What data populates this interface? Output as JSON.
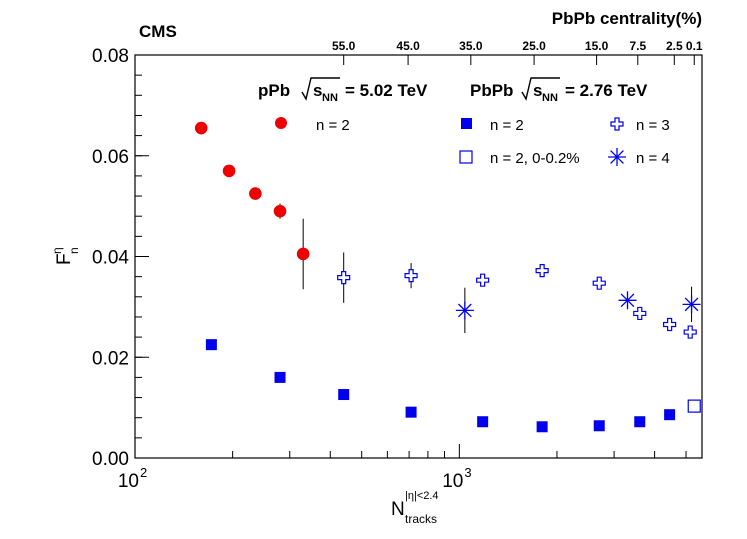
{
  "chart_data": {
    "type": "scatter",
    "title": "",
    "experiment_label": "CMS",
    "top_axis_title": "PbPb centrality(%)",
    "top_tick_labels": [
      {
        "label": "55.0",
        "x": 440
      },
      {
        "label": "45.0",
        "x": 695
      },
      {
        "label": "35.0",
        "x": 1085
      },
      {
        "label": "25.0",
        "x": 1700
      },
      {
        "label": "15.0",
        "x": 2650
      },
      {
        "label": "7.5",
        "x": 3550
      },
      {
        "label": "2.5",
        "x": 4600
      },
      {
        "label": "0.1",
        "x": 5300
      }
    ],
    "xlabel": {
      "main": "N",
      "sub": "tracks",
      "sup": "|η|<2.4"
    },
    "ylabel": {
      "main": "F",
      "sub": "n",
      "sup": "η"
    },
    "xscale": "log",
    "xlim": [
      100,
      5600
    ],
    "ylim": [
      0,
      0.08
    ],
    "x_major_ticks": [
      {
        "value": 100,
        "base": "10",
        "exp": "2"
      },
      {
        "value": 1000,
        "base": "10",
        "exp": "3"
      }
    ],
    "y_ticks": [
      {
        "value": 0.0,
        "label": "0.00"
      },
      {
        "value": 0.02,
        "label": "0.02"
      },
      {
        "value": 0.04,
        "label": "0.04"
      },
      {
        "value": 0.06,
        "label": "0.06"
      },
      {
        "value": 0.08,
        "label": "0.08"
      }
    ],
    "grid": false,
    "legend_headers": [
      {
        "text_main": "pPb",
        "text_sqrt": "s",
        "text_sub": "NN",
        "text_value": "= 5.02 TeV"
      },
      {
        "text_main": "PbPb",
        "text_sqrt": "s",
        "text_sub": "NN",
        "text_value": "= 2.76 TeV"
      }
    ],
    "series": [
      {
        "name": "n = 2",
        "system": "pPb",
        "marker": "filled-circle",
        "color": "#ee0000",
        "points": [
          {
            "x": 160,
            "y": 0.0655,
            "err": 0.0012
          },
          {
            "x": 195,
            "y": 0.057,
            "err": 0.0008
          },
          {
            "x": 235,
            "y": 0.0525,
            "err": 0.0008
          },
          {
            "x": 280,
            "y": 0.049,
            "err": 0.0015
          },
          {
            "x": 330,
            "y": 0.0405,
            "err": 0.007
          }
        ]
      },
      {
        "name": "n = 2",
        "system": "PbPb",
        "marker": "filled-square",
        "color": "#0000ee",
        "points": [
          {
            "x": 172,
            "y": 0.0225,
            "err": 0
          },
          {
            "x": 280,
            "y": 0.016,
            "err": 0
          },
          {
            "x": 440,
            "y": 0.0126,
            "err": 0
          },
          {
            "x": 710,
            "y": 0.0091,
            "err": 0
          },
          {
            "x": 1180,
            "y": 0.0072,
            "err": 0
          },
          {
            "x": 1800,
            "y": 0.0062,
            "err": 0
          },
          {
            "x": 2700,
            "y": 0.0064,
            "err": 0
          },
          {
            "x": 3600,
            "y": 0.0072,
            "err": 0
          },
          {
            "x": 4450,
            "y": 0.0086,
            "err": 0
          }
        ]
      },
      {
        "name": "n = 2, 0-0.2%",
        "system": "PbPb",
        "marker": "open-square",
        "color": "#0000ee",
        "points": [
          {
            "x": 5300,
            "y": 0.0103,
            "err": 0
          }
        ]
      },
      {
        "name": "n = 3",
        "system": "PbPb",
        "marker": "open-cross",
        "color": "#0000ee",
        "points": [
          {
            "x": 440,
            "y": 0.0358,
            "err": 0.005
          },
          {
            "x": 710,
            "y": 0.0362,
            "err": 0.0025
          },
          {
            "x": 1180,
            "y": 0.0353,
            "err": 0
          },
          {
            "x": 1800,
            "y": 0.0372,
            "err": 0
          },
          {
            "x": 2700,
            "y": 0.0347,
            "err": 0
          },
          {
            "x": 3600,
            "y": 0.0287,
            "err": 0
          },
          {
            "x": 4450,
            "y": 0.0265,
            "err": 0
          },
          {
            "x": 5150,
            "y": 0.025,
            "err": 0
          }
        ]
      },
      {
        "name": "n = 4",
        "system": "PbPb",
        "marker": "star",
        "color": "#0000ee",
        "points": [
          {
            "x": 1040,
            "y": 0.0293,
            "err": 0.0045
          },
          {
            "x": 3300,
            "y": 0.0313,
            "err": 0.0015
          },
          {
            "x": 5200,
            "y": 0.0305,
            "err": 0.0035
          }
        ]
      }
    ]
  }
}
